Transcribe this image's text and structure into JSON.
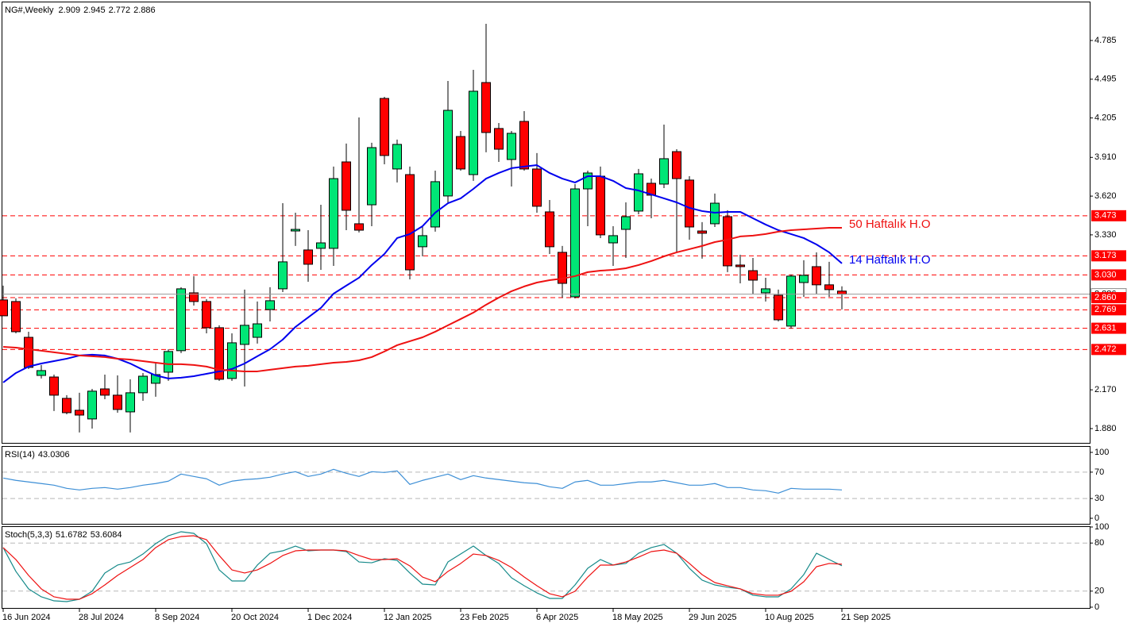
{
  "chart_data": [
    {
      "type": "candlestick",
      "title": "NG#,Weekly",
      "categories": [
        "16 Jun 2024",
        null,
        null,
        null,
        null,
        null,
        "28 Jul 2024",
        null,
        null,
        null,
        null,
        null,
        "8 Sep 2024",
        null,
        null,
        null,
        null,
        null,
        "20 Oct 2024",
        null,
        null,
        null,
        null,
        null,
        "1 Dec 2024",
        null,
        null,
        null,
        null,
        null,
        "12 Jan 2025",
        null,
        null,
        null,
        null,
        null,
        "23 Feb 2025",
        null,
        null,
        null,
        null,
        null,
        "6 Apr 2025",
        null,
        null,
        null,
        null,
        null,
        "18 May 2025",
        null,
        null,
        null,
        null,
        null,
        "29 Jun 2025",
        null,
        null,
        null,
        null,
        null,
        "10 Aug 2025",
        null,
        null,
        null,
        null,
        null,
        "21 Sep 2025"
      ],
      "open": [
        2.843,
        2.831,
        2.563,
        2.278,
        2.266,
        2.106,
        2.017,
        1.952,
        2.177,
        2.13,
        2.005,
        2.148,
        2.219,
        2.302,
        2.463,
        2.896,
        2.831,
        2.635,
        2.255,
        2.51,
        2.563,
        2.771,
        2.926,
        3.359,
        3.217,
        3.229,
        3.229,
        3.876,
        3.413,
        3.555,
        4.351,
        3.823,
        3.781,
        3.241,
        3.389,
        3.621,
        4.066,
        3.781,
        4.47,
        4.126,
        3.894,
        4.179,
        3.823,
        3.502,
        3.199,
        2.866,
        3.674,
        3.769,
        3.27,
        3.371,
        3.508,
        3.716,
        3.71,
        3.953,
        3.74,
        3.359,
        3.413,
        3.466,
        3.104,
        3.062,
        2.896,
        2.878,
        2.647,
        2.973,
        3.092,
        2.956,
        2.909
      ],
      "high": [
        2.95,
        2.855,
        2.605,
        2.356,
        2.284,
        2.13,
        2.148,
        2.177,
        2.284,
        2.278,
        2.249,
        2.296,
        2.367,
        2.474,
        2.938,
        3.021,
        2.849,
        2.653,
        2.593,
        2.92,
        2.831,
        2.938,
        3.567,
        3.496,
        3.365,
        3.555,
        3.841,
        4.013,
        4.209,
        4.019,
        4.363,
        4.043,
        3.841,
        3.395,
        3.811,
        4.482,
        4.108,
        4.565,
        4.91,
        4.167,
        4.108,
        4.256,
        3.942,
        3.591,
        3.247,
        3.71,
        3.811,
        3.841,
        3.395,
        3.573,
        3.823,
        3.751,
        4.155,
        3.971,
        3.769,
        3.425,
        3.639,
        3.514,
        3.181,
        3.157,
        3.009,
        2.92,
        3.033,
        3.14,
        3.199,
        3.128,
        2.945
      ],
      "low": [
        2.724,
        2.593,
        2.326,
        2.255,
        2.011,
        1.987,
        1.851,
        1.88,
        2.1,
        1.999,
        1.851,
        2.088,
        2.118,
        2.237,
        2.445,
        2.801,
        2.593,
        2.237,
        2.237,
        2.195,
        2.516,
        2.682,
        2.902,
        3.247,
        2.979,
        3.068,
        3.098,
        3.365,
        3.348,
        3.395,
        3.858,
        3.722,
        2.997,
        3.169,
        3.354,
        3.561,
        3.811,
        3.734,
        3.948,
        3.876,
        3.692,
        3.811,
        3.496,
        3.187,
        2.86,
        2.855,
        3.395,
        3.306,
        3.098,
        3.157,
        3.484,
        3.454,
        3.68,
        3.199,
        3.294,
        3.152,
        3.389,
        3.051,
        2.967,
        2.89,
        2.831,
        2.682,
        2.629,
        2.866,
        2.89,
        2.866,
        2.772
      ],
      "close": [
        2.724,
        2.605,
        2.338,
        2.314,
        2.13,
        1.999,
        1.981,
        2.16,
        2.13,
        2.023,
        2.148,
        2.272,
        2.284,
        2.457,
        2.926,
        2.831,
        2.635,
        2.249,
        2.522,
        2.653,
        2.664,
        2.837,
        3.128,
        3.371,
        3.11,
        3.27,
        3.751,
        3.514,
        3.365,
        3.983,
        3.924,
        4.007,
        3.068,
        3.324,
        3.728,
        4.262,
        3.823,
        4.405,
        4.096,
        3.971,
        4.09,
        3.823,
        3.544,
        3.241,
        2.967,
        3.674,
        3.793,
        3.33,
        3.324,
        3.466,
        3.787,
        3.627,
        3.9,
        3.751,
        3.389,
        3.342,
        3.567,
        3.098,
        3.092,
        2.991,
        2.926,
        2.694,
        3.021,
        3.027,
        2.956,
        2.92,
        2.886
      ],
      "up_color": "#00e676",
      "down_color": "#ff0000",
      "series": [
        {
          "name": "14 Haftalık H.O",
          "color": "#0000ee",
          "values": [
            2.225,
            2.296,
            2.344,
            2.367,
            2.385,
            2.403,
            2.427,
            2.433,
            2.427,
            2.403,
            2.367,
            2.32,
            2.278,
            2.255,
            2.261,
            2.272,
            2.29,
            2.308,
            2.326,
            2.367,
            2.421,
            2.474,
            2.546,
            2.641,
            2.712,
            2.783,
            2.89,
            2.95,
            3.009,
            3.104,
            3.187,
            3.306,
            3.336,
            3.395,
            3.496,
            3.567,
            3.603,
            3.674,
            3.751,
            3.793,
            3.829,
            3.841,
            3.852,
            3.793,
            3.751,
            3.722,
            3.769,
            3.769,
            3.734,
            3.68,
            3.662,
            3.633,
            3.603,
            3.573,
            3.532,
            3.508,
            3.496,
            3.502,
            3.502,
            3.454,
            3.407,
            3.365,
            3.336,
            3.306,
            3.258,
            3.199,
            3.116
          ]
        },
        {
          "name": "50 Haftalık H.O",
          "color": "#ee1111",
          "values": [
            2.492,
            2.486,
            2.474,
            2.463,
            2.451,
            2.439,
            2.427,
            2.421,
            2.415,
            2.403,
            2.397,
            2.385,
            2.373,
            2.362,
            2.362,
            2.356,
            2.344,
            2.32,
            2.314,
            2.308,
            2.308,
            2.32,
            2.332,
            2.344,
            2.35,
            2.362,
            2.373,
            2.379,
            2.391,
            2.415,
            2.457,
            2.504,
            2.534,
            2.563,
            2.605,
            2.653,
            2.7,
            2.748,
            2.807,
            2.86,
            2.908,
            2.944,
            2.973,
            2.991,
            3.003,
            3.021,
            3.051,
            3.062,
            3.068,
            3.08,
            3.104,
            3.134,
            3.169,
            3.199,
            3.223,
            3.247,
            3.276,
            3.294,
            3.318,
            3.324,
            3.336,
            3.354,
            3.365,
            3.371,
            3.377,
            3.383,
            3.383
          ]
        }
      ],
      "ylim": [
        1.773,
        5.076
      ],
      "yticks": [
        4.785,
        4.495,
        4.205,
        {
          "value": 3.91,
          "label": "3.910"
        },
        {
          "value": 3.62,
          "label": "3.620"
        },
        {
          "value": 3.33,
          "label": "3.330"
        },
        {
          "value": 2.17,
          "label": "2.170"
        },
        {
          "value": 1.88,
          "label": "1.880"
        }
      ],
      "levels": [
        3.473,
        3.173,
        {
          "value": 3.03,
          "label": "3.030"
        },
        {
          "value": 2.86,
          "label": "2.860"
        },
        2.769,
        2.631,
        2.472
      ],
      "level_color": "#ff0000"
    },
    {
      "type": "line",
      "title": "RSI(14)",
      "series": [
        {
          "color": "#3d8fd6",
          "values": [
            61.1,
            57.5,
            55.1,
            52.7,
            50.2,
            45.4,
            43.0,
            45.4,
            46.6,
            44.2,
            46.6,
            50.2,
            52.7,
            56.3,
            67.1,
            63.5,
            59.9,
            50.2,
            56.3,
            58.7,
            59.9,
            62.3,
            67.1,
            70.7,
            63.5,
            67.1,
            74.3,
            68.3,
            63.5,
            70.7,
            69.5,
            71.9,
            51.4,
            57.5,
            62.3,
            67.1,
            58.7,
            64.7,
            61.1,
            58.7,
            56.3,
            53.9,
            52.7,
            47.8,
            45.4,
            55.1,
            57.5,
            50.2,
            50.2,
            52.7,
            55.1,
            55.1,
            57.5,
            53.9,
            50.2,
            50.2,
            52.7,
            46.6,
            46.6,
            43.0,
            41.8,
            38.2,
            45.4,
            44.2,
            44.2,
            44.2,
            43.0306
          ]
        }
      ],
      "ylim": [
        -8.4,
        109.6
      ],
      "yticks": [
        100,
        70,
        30,
        0
      ],
      "levels": [
        70,
        30
      ],
      "level_color": "#b8b8b8"
    },
    {
      "type": "line",
      "title": "Stoch(5,3,3)",
      "series": [
        {
          "color": "#168a8a",
          "values": [
            74.3,
            44.6,
            22.8,
            12.9,
            7.9,
            6.9,
            9.9,
            19.8,
            42.6,
            52.5,
            56.4,
            66.3,
            79.2,
            89.1,
            94.1,
            92.1,
            79.2,
            46.5,
            32.7,
            32.7,
            52.5,
            67.3,
            70.3,
            76.2,
            70.3,
            71.3,
            71.3,
            69.3,
            56.4,
            55.4,
            60.4,
            58.4,
            42.6,
            28.7,
            27.7,
            56.4,
            66.3,
            76.2,
            64.4,
            54.5,
            36.6,
            26.7,
            17.8,
            10.9,
            10.9,
            27.7,
            48.5,
            59.4,
            52.5,
            54.5,
            67.3,
            74.3,
            78.2,
            67.3,
            48.5,
            33.7,
            27.7,
            24.8,
            22.8,
            14.9,
            12.9,
            12.9,
            22.8,
            40.6,
            67.3,
            59.4,
            51.6782
          ]
        },
        {
          "color": "#ee1111",
          "values": [
            74.3,
            59.4,
            39.6,
            22.8,
            12.9,
            9.9,
            9.9,
            16.8,
            27.7,
            39.6,
            49.5,
            59.4,
            74.3,
            84.2,
            88.1,
            89.1,
            84.2,
            64.4,
            46.5,
            42.6,
            46.5,
            54.5,
            64.4,
            70.3,
            71.3,
            71.3,
            71.3,
            70.3,
            64.4,
            59.4,
            59.4,
            60.4,
            51.5,
            37.6,
            31.7,
            44.6,
            54.5,
            66.3,
            64.4,
            58.4,
            49.5,
            37.6,
            26.7,
            16.8,
            12.9,
            19.8,
            37.6,
            52.5,
            52.5,
            56.4,
            62.4,
            69.3,
            71.3,
            67.3,
            54.5,
            40.6,
            30.7,
            26.7,
            22.8,
            16.8,
            14.9,
            14.9,
            19.8,
            31.7,
            50.5,
            54.5,
            53.6084
          ]
        }
      ],
      "ylim": [
        -1,
        101
      ],
      "yticks": [
        100,
        80,
        20,
        0
      ],
      "levels": [
        80,
        20
      ],
      "level_color": "#b8b8b8"
    }
  ]
}
